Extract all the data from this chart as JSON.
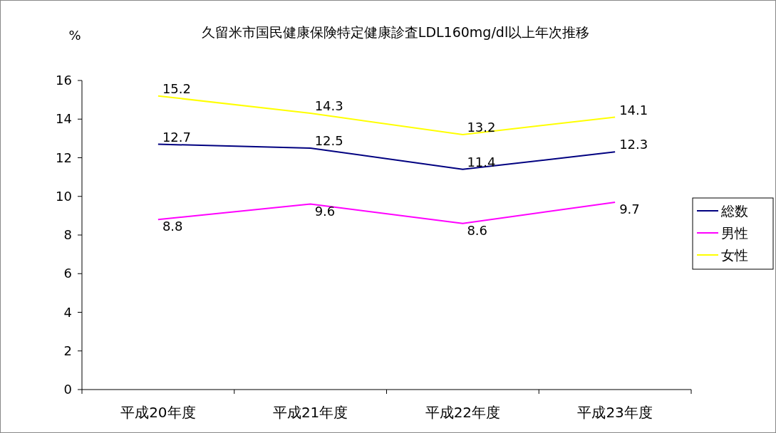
{
  "chart_data": {
    "type": "line",
    "title": "久留米市国民健康保険特定健康診査LDL160mg/dl以上年次推移",
    "ylabel": "%",
    "categories": [
      "平成20年度",
      "平成21年度",
      "平成22年度",
      "平成23年度"
    ],
    "series": [
      {
        "name": "総数",
        "color": "#000080",
        "values": [
          12.7,
          12.5,
          11.4,
          12.3
        ]
      },
      {
        "name": "男性",
        "color": "#ff00ff",
        "values": [
          8.8,
          9.6,
          8.6,
          9.7
        ]
      },
      {
        "name": "女性",
        "color": "#ffff00",
        "values": [
          15.2,
          14.3,
          13.2,
          14.1
        ]
      }
    ],
    "ylim": [
      0,
      16
    ],
    "yticks": [
      0,
      2,
      4,
      6,
      8,
      10,
      12,
      14,
      16
    ],
    "data_labels": true,
    "legend": "right",
    "grid": false,
    "marker": "none",
    "line_style": "solid"
  }
}
